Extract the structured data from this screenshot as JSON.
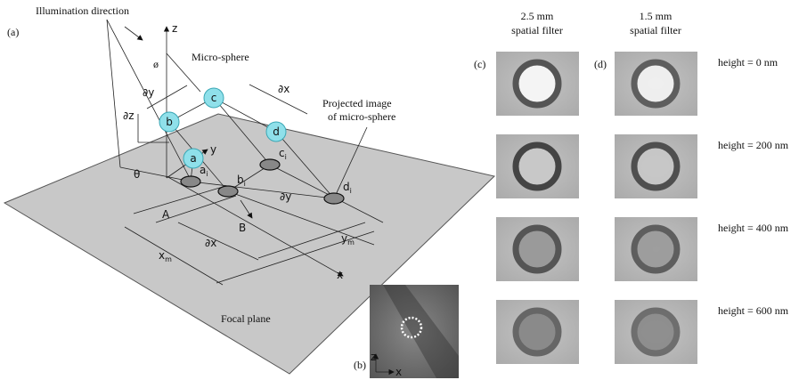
{
  "panel_a": {
    "label": "(a)",
    "illumination": "Illumination direction",
    "axis_z": "z",
    "axis_y": "y",
    "axis_x": "x",
    "angle_phi": "ø",
    "angle_theta": "θ",
    "microsphere": "Micro-sphere",
    "projected": [
      "Projected image",
      "of micro-sphere"
    ],
    "spheres": [
      "a",
      "b",
      "c",
      "d"
    ],
    "images": [
      {
        "main": "a",
        "sub": "i"
      },
      {
        "main": "b",
        "sub": "i"
      },
      {
        "main": "c",
        "sub": "i"
      },
      {
        "main": "d",
        "sub": "i"
      }
    ],
    "dy_top": "∂y",
    "dx_top": "∂x",
    "dz": "∂z",
    "dy_plane": "∂y",
    "dx_plane": "∂x",
    "A": "A",
    "B": "B",
    "xm": {
      "main": "x",
      "sub": "m"
    },
    "ym": {
      "main": "y",
      "sub": "m"
    },
    "focal_plane": "Focal plane"
  },
  "panel_b": {
    "label": "(b)",
    "axis_z": "z",
    "axis_x": "x"
  },
  "panel_c": {
    "label": "(c)",
    "title": [
      "2.5 mm",
      "spatial filter"
    ]
  },
  "panel_d": {
    "label": "(d)",
    "title": [
      "1.5 mm",
      "spatial filter"
    ]
  },
  "heights": [
    "height = 0 nm",
    "height = 200 nm",
    "height = 400 nm",
    "height = 600 nm"
  ]
}
